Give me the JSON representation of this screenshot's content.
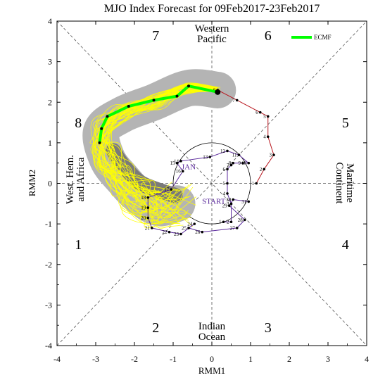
{
  "chart_data": {
    "type": "scatter",
    "title": "MJO Index Forecast for 09Feb2017-23Feb2017",
    "xlabel": "RMM1",
    "ylabel": "RMM2",
    "xlim": [
      -4,
      4
    ],
    "ylim": [
      -4,
      4
    ],
    "xticks": [
      "-4",
      "-3",
      "-2",
      "-1",
      "0",
      "1",
      "2",
      "3",
      "4"
    ],
    "yticks": [
      "-4",
      "-3",
      "-2",
      "-1",
      "0",
      "1",
      "2",
      "3",
      "4"
    ],
    "grid": false,
    "legend": {
      "position": "top-right",
      "label": "ECMF",
      "color": "#00ff00"
    },
    "phase_numbers": [
      {
        "label": "1",
        "x": -3.45,
        "y": -1.5
      },
      {
        "label": "2",
        "x": -1.45,
        "y": -3.55
      },
      {
        "label": "3",
        "x": 1.45,
        "y": -3.55
      },
      {
        "label": "4",
        "x": 3.45,
        "y": -1.5
      },
      {
        "label": "5",
        "x": 3.45,
        "y": 1.5
      },
      {
        "label": "6",
        "x": 1.45,
        "y": 3.65
      },
      {
        "label": "7",
        "x": -1.45,
        "y": 3.65
      },
      {
        "label": "8",
        "x": -3.45,
        "y": 1.5
      }
    ],
    "region_labels": {
      "top": [
        "Western",
        "Pacific"
      ],
      "bottom": [
        "Indian",
        "Ocean"
      ],
      "left": [
        "West. Hem.",
        "and Africa"
      ],
      "right": [
        "Maritime",
        "Continent"
      ]
    },
    "month_labels": [
      {
        "label": "JAN",
        "x": -0.6,
        "y": 0.35,
        "color": "#5b2a9c"
      },
      {
        "label": "START",
        "x": 0.05,
        "y": -0.5,
        "color": "#5b2a9c"
      }
    ],
    "observed_dec": {
      "color": "#b8141c",
      "points": [
        {
          "label": "8",
          "x": 0.15,
          "y": 2.3
        },
        {
          "label": "7",
          "x": 0.65,
          "y": 2.05
        },
        {
          "label": "6",
          "x": 1.25,
          "y": 1.75
        },
        {
          "label": "5",
          "x": 1.45,
          "y": 1.65
        },
        {
          "label": "4",
          "x": 1.45,
          "y": 1.15
        },
        {
          "label": "3",
          "x": 1.6,
          "y": 0.7
        },
        {
          "label": "2",
          "x": 1.35,
          "y": 0.35
        },
        {
          "label": "1",
          "x": 1.15,
          "y": 0.0
        }
      ]
    },
    "observed_jan": {
      "color": "#5b2a9c",
      "points": [
        {
          "label": "31",
          "x": 0.95,
          "y": -0.45
        },
        {
          "label": "30",
          "x": 0.55,
          "y": -0.4
        },
        {
          "label": "29",
          "x": 0.45,
          "y": -0.55
        },
        {
          "label": "28",
          "x": 0.85,
          "y": -0.9
        },
        {
          "label": "27",
          "x": 0.65,
          "y": -1.1
        },
        {
          "label": "26",
          "x": -0.25,
          "y": -1.2
        },
        {
          "label": "25",
          "x": -0.6,
          "y": -1.1
        },
        {
          "label": "24",
          "x": -0.45,
          "y": -1.0
        },
        {
          "label": "23",
          "x": -0.8,
          "y": -1.25
        },
        {
          "label": "22",
          "x": -1.1,
          "y": -1.2
        },
        {
          "label": "21",
          "x": -1.55,
          "y": -1.1
        },
        {
          "label": "20",
          "x": -1.65,
          "y": -0.85
        },
        {
          "label": "19",
          "x": -1.65,
          "y": -0.6
        },
        {
          "label": "18",
          "x": -1.65,
          "y": -0.35
        },
        {
          "label": "17",
          "x": -1.05,
          "y": -0.15
        },
        {
          "label": "16",
          "x": -0.75,
          "y": 0.3
        },
        {
          "label": "15",
          "x": -0.9,
          "y": 0.5
        },
        {
          "label": "14",
          "x": -0.8,
          "y": 0.55
        },
        {
          "label": "13",
          "x": -0.05,
          "y": 0.65
        },
        {
          "label": "12",
          "x": 0.4,
          "y": 0.8
        },
        {
          "label": "11",
          "x": 0.7,
          "y": 0.7
        },
        {
          "label": "10",
          "x": 0.95,
          "y": 0.5
        },
        {
          "label": "9",
          "x": 0.8,
          "y": 0.5
        },
        {
          "label": "8",
          "x": 0.55,
          "y": 0.5
        },
        {
          "label": "7",
          "x": 0.5,
          "y": 0.45
        },
        {
          "label": "6",
          "x": 0.4,
          "y": 0.35
        },
        {
          "label": "5",
          "x": 0.4,
          "y": 0.0
        },
        {
          "label": "4",
          "x": 0.4,
          "y": -0.25
        },
        {
          "label": "3",
          "x": 0.5,
          "y": -0.5
        },
        {
          "label": "2",
          "x": 0.5,
          "y": -0.95
        },
        {
          "label": "1",
          "x": 0.3,
          "y": -0.95
        }
      ]
    },
    "forecast_ecmf": {
      "name": "ECMF",
      "color": "#00ff00",
      "points": [
        {
          "x": 0.15,
          "y": 2.25
        },
        {
          "x": -0.6,
          "y": 2.4
        },
        {
          "x": -0.9,
          "y": 2.15
        },
        {
          "x": -1.5,
          "y": 2.05
        },
        {
          "x": -2.15,
          "y": 1.9
        },
        {
          "x": -2.7,
          "y": 1.65
        },
        {
          "x": -2.85,
          "y": 1.35
        },
        {
          "x": -2.9,
          "y": 1.0
        }
      ]
    },
    "forecast_bands": {
      "outer_color": "#b4b4b4",
      "inner_color": "#7a7a7a",
      "ensemble_color": "#ffff00",
      "centerline": [
        {
          "x": 0.15,
          "y": 2.3
        },
        {
          "x": -0.6,
          "y": 2.35
        },
        {
          "x": -1.5,
          "y": 2.0
        },
        {
          "x": -2.3,
          "y": 1.7
        },
        {
          "x": -2.85,
          "y": 1.3
        },
        {
          "x": -2.7,
          "y": 0.6
        },
        {
          "x": -2.3,
          "y": 0.1
        },
        {
          "x": -1.9,
          "y": -0.3
        },
        {
          "x": -1.4,
          "y": -0.6
        },
        {
          "x": -0.9,
          "y": -0.5
        }
      ],
      "dark_centerline": [
        {
          "x": -2.55,
          "y": 0.8
        },
        {
          "x": -2.3,
          "y": 0.45
        },
        {
          "x": -1.9,
          "y": 0.05
        },
        {
          "x": -1.45,
          "y": -0.15
        },
        {
          "x": -0.95,
          "y": -0.3
        }
      ]
    }
  }
}
